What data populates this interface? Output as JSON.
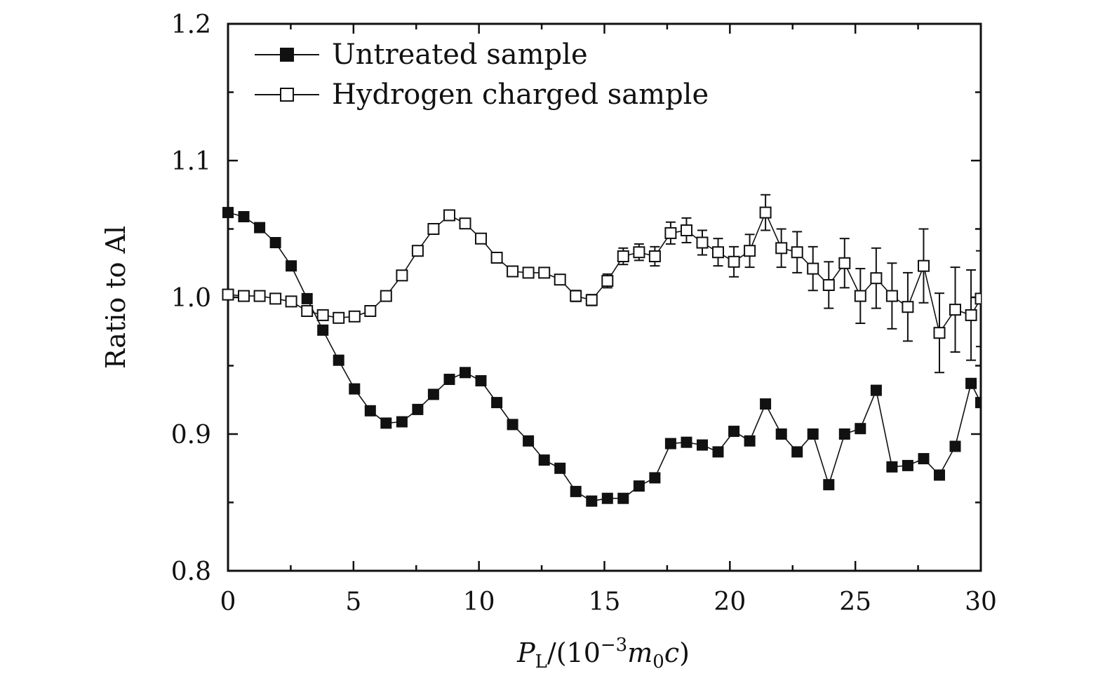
{
  "chart_data": {
    "type": "line",
    "xlabel_main": "P",
    "xlabel_sub": "L",
    "xlabel_open": "/(10",
    "xlabel_exp": "−3",
    "xlabel_m": "m",
    "xlabel_m_sub": "0",
    "xlabel_c": "c",
    "xlabel_close": ")",
    "ylabel": "Ratio to Al",
    "xlim": [
      0,
      30
    ],
    "ylim": [
      0.8,
      1.2
    ],
    "xticks": [
      "0",
      "5",
      "10",
      "15",
      "20",
      "25",
      "30"
    ],
    "xtick_values": [
      0,
      5,
      10,
      15,
      20,
      25,
      30
    ],
    "yticks": [
      "0.8",
      "0.9",
      "1.0",
      "1.1",
      "1.2"
    ],
    "ytick_values": [
      0.8,
      0.9,
      1.0,
      1.1,
      1.2
    ],
    "legend_position": "top-left",
    "series": [
      {
        "name": "Untreated sample",
        "marker": "filled-square",
        "color": "#111111",
        "x": [
          0,
          0.63,
          1.26,
          1.89,
          2.52,
          3.15,
          3.78,
          4.41,
          5.04,
          5.67,
          6.3,
          6.93,
          7.56,
          8.19,
          8.82,
          9.45,
          10.08,
          10.71,
          11.34,
          11.97,
          12.6,
          13.23,
          13.86,
          14.49,
          15.12,
          15.75,
          16.38,
          17.01,
          17.64,
          18.27,
          18.9,
          19.53,
          20.16,
          20.79,
          21.42,
          22.05,
          22.68,
          23.31,
          23.94,
          24.57,
          25.2,
          25.83,
          26.46,
          27.09,
          27.72,
          28.35,
          28.98,
          29.61,
          30
        ],
        "y": [
          1.062,
          1.059,
          1.051,
          1.04,
          1.023,
          0.999,
          0.976,
          0.954,
          0.933,
          0.917,
          0.908,
          0.909,
          0.918,
          0.929,
          0.94,
          0.945,
          0.939,
          0.923,
          0.907,
          0.895,
          0.881,
          0.875,
          0.858,
          0.851,
          0.853,
          0.853,
          0.862,
          0.868,
          0.893,
          0.894,
          0.892,
          0.887,
          0.902,
          0.895,
          0.922,
          0.9,
          0.887,
          0.9,
          0.863,
          0.9,
          0.904,
          0.932,
          0.876,
          0.877,
          0.882,
          0.87,
          0.891,
          0.937,
          0.923
        ]
      },
      {
        "name": "Hydrogen charged sample",
        "marker": "open-square",
        "color": "#111111",
        "x": [
          0,
          0.63,
          1.26,
          1.89,
          2.52,
          3.15,
          3.78,
          4.41,
          5.04,
          5.67,
          6.3,
          6.93,
          7.56,
          8.19,
          8.82,
          9.45,
          10.08,
          10.71,
          11.34,
          11.97,
          12.6,
          13.23,
          13.86,
          14.49,
          15.12,
          15.75,
          16.38,
          17.01,
          17.64,
          18.27,
          18.9,
          19.53,
          20.16,
          20.79,
          21.42,
          22.05,
          22.68,
          23.31,
          23.94,
          24.57,
          25.2,
          25.83,
          26.46,
          27.09,
          27.72,
          28.35,
          28.98,
          29.61,
          30
        ],
        "y": [
          1.002,
          1.001,
          1.001,
          0.999,
          0.997,
          0.99,
          0.987,
          0.985,
          0.986,
          0.99,
          1.001,
          1.016,
          1.034,
          1.05,
          1.06,
          1.054,
          1.043,
          1.029,
          1.019,
          1.018,
          1.018,
          1.013,
          1.001,
          0.998,
          1.012,
          1.03,
          1.033,
          1.03,
          1.047,
          1.049,
          1.04,
          1.033,
          1.026,
          1.034,
          1.062,
          1.036,
          1.033,
          1.021,
          1.009,
          1.025,
          1.001,
          1.014,
          1.001,
          0.993,
          1.023,
          0.974,
          0.991,
          0.987,
          0.999
        ],
        "error": [
          0.002,
          0.002,
          0.002,
          0.002,
          0.002,
          0.002,
          0.002,
          0.002,
          0.002,
          0.002,
          0.003,
          0.003,
          0.003,
          0.003,
          0.003,
          0.003,
          0.003,
          0.003,
          0.003,
          0.003,
          0.003,
          0.003,
          0.004,
          0.004,
          0.005,
          0.006,
          0.006,
          0.007,
          0.008,
          0.009,
          0.009,
          0.01,
          0.011,
          0.012,
          0.013,
          0.014,
          0.015,
          0.016,
          0.017,
          0.018,
          0.02,
          0.022,
          0.024,
          0.025,
          0.027,
          0.029,
          0.031,
          0.033,
          0.035
        ]
      }
    ]
  }
}
